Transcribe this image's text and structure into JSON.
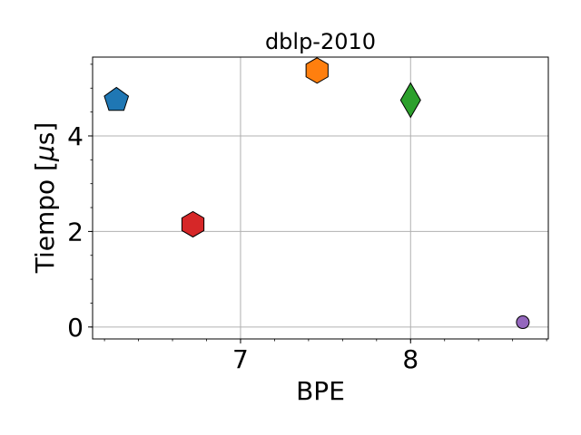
{
  "chart_data": {
    "type": "scatter",
    "title": "dblp-2010",
    "xlabel": "BPE",
    "ylabel_prefix": "Tiempo [",
    "ylabel_mu": "μ",
    "ylabel_suffix": "s]",
    "xlim": [
      6.13,
      8.81
    ],
    "ylim": [
      -0.25,
      5.65
    ],
    "xticks": [
      7,
      8
    ],
    "xtick_labels": [
      "7",
      "8"
    ],
    "yticks": [
      0,
      2,
      4
    ],
    "ytick_labels": [
      "0",
      "2",
      "4"
    ],
    "x_minor_step": 0.2,
    "y_minor_step": 0.5,
    "grid": true,
    "legend": "none",
    "points": [
      {
        "x": 6.27,
        "y": 4.75,
        "marker": "pentagon",
        "color": "#1f77b4"
      },
      {
        "x": 6.72,
        "y": 2.15,
        "marker": "hexagon",
        "color": "#d62728"
      },
      {
        "x": 7.45,
        "y": 5.37,
        "marker": "hexagon",
        "color": "#ff7f0e"
      },
      {
        "x": 8.0,
        "y": 4.75,
        "marker": "diamond",
        "color": "#2ca02c"
      },
      {
        "x": 8.66,
        "y": 0.1,
        "marker": "circle",
        "color": "#9467bd"
      }
    ]
  }
}
